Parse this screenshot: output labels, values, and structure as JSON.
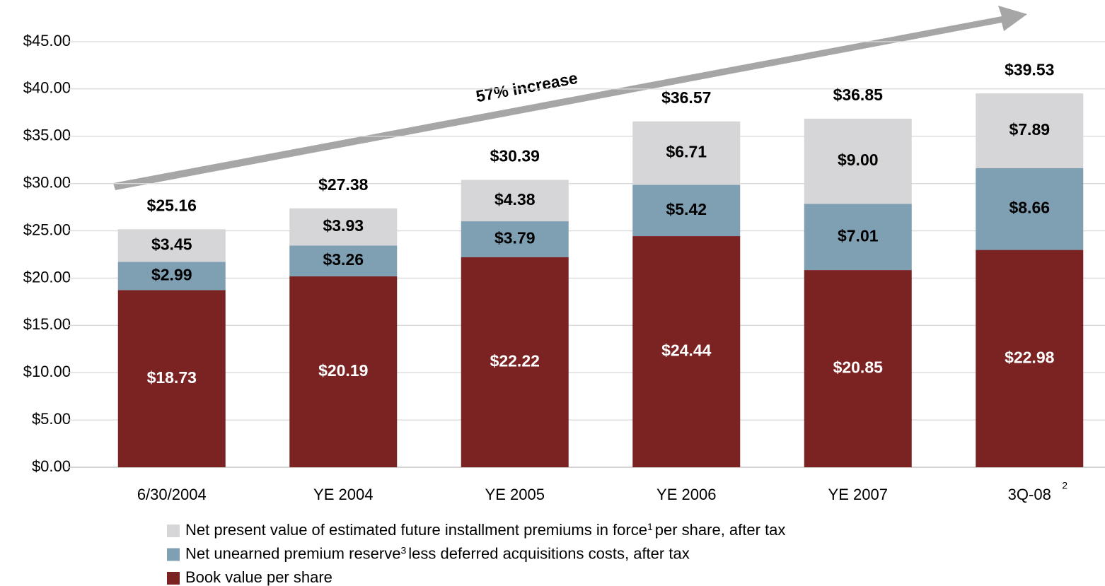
{
  "chart_data": {
    "type": "stacked_bar",
    "annotation": "57% increase",
    "categories": [
      "6/30/2004",
      "YE 2004",
      "YE 2005",
      "YE 2006",
      "YE 2007",
      "3Q-08"
    ],
    "category_footnotes": [
      null,
      null,
      null,
      null,
      null,
      "2"
    ],
    "ylim": [
      0,
      45
    ],
    "yticks": [
      {
        "value": 0,
        "label": "$0.00"
      },
      {
        "value": 5,
        "label": "$5.00"
      },
      {
        "value": 10,
        "label": "$10.00"
      },
      {
        "value": 15,
        "label": "$15.00"
      },
      {
        "value": 20,
        "label": "$20.00"
      },
      {
        "value": 25,
        "label": "$25.00"
      },
      {
        "value": 30,
        "label": "$30.00"
      },
      {
        "value": 35,
        "label": "$35.00"
      },
      {
        "value": 40,
        "label": "$40.00"
      },
      {
        "value": 45,
        "label": "$45.00"
      }
    ],
    "grid": true,
    "series": [
      {
        "name": "Book value per share",
        "color": "#7b2323",
        "label_color": "#ffffff",
        "values": [
          18.73,
          20.19,
          22.22,
          24.44,
          20.85,
          22.98
        ],
        "value_labels": [
          "$18.73",
          "$20.19",
          "$22.22",
          "$24.44",
          "$20.85",
          "$22.98"
        ]
      },
      {
        "name": "Net unearned premium reserve",
        "footnote": "3",
        "name_end": "less deferred acquisitions costs, after tax",
        "color": "#7f9fb3",
        "label_color": "#000000",
        "values": [
          2.99,
          3.26,
          3.79,
          5.42,
          7.01,
          8.66
        ],
        "value_labels": [
          "$2.99",
          "$3.26",
          "$3.79",
          "$5.42",
          "$7.01",
          "$8.66"
        ]
      },
      {
        "name": "Net present value of estimated future installment premiums in force",
        "footnote": "1",
        "name_end": "per share, after tax",
        "color": "#d6d6d8",
        "label_color": "#000000",
        "values": [
          3.45,
          3.93,
          4.38,
          6.71,
          9.0,
          7.89
        ],
        "value_labels": [
          "$3.45",
          "$3.93",
          "$4.38",
          "$6.71",
          "$9.00",
          "$7.89"
        ]
      }
    ],
    "totals": [
      25.16,
      27.38,
      30.39,
      36.57,
      36.85,
      39.53
    ],
    "total_labels": [
      "$25.16",
      "$27.38",
      "$30.39",
      "$36.57",
      "$36.85",
      "$39.53"
    ]
  }
}
